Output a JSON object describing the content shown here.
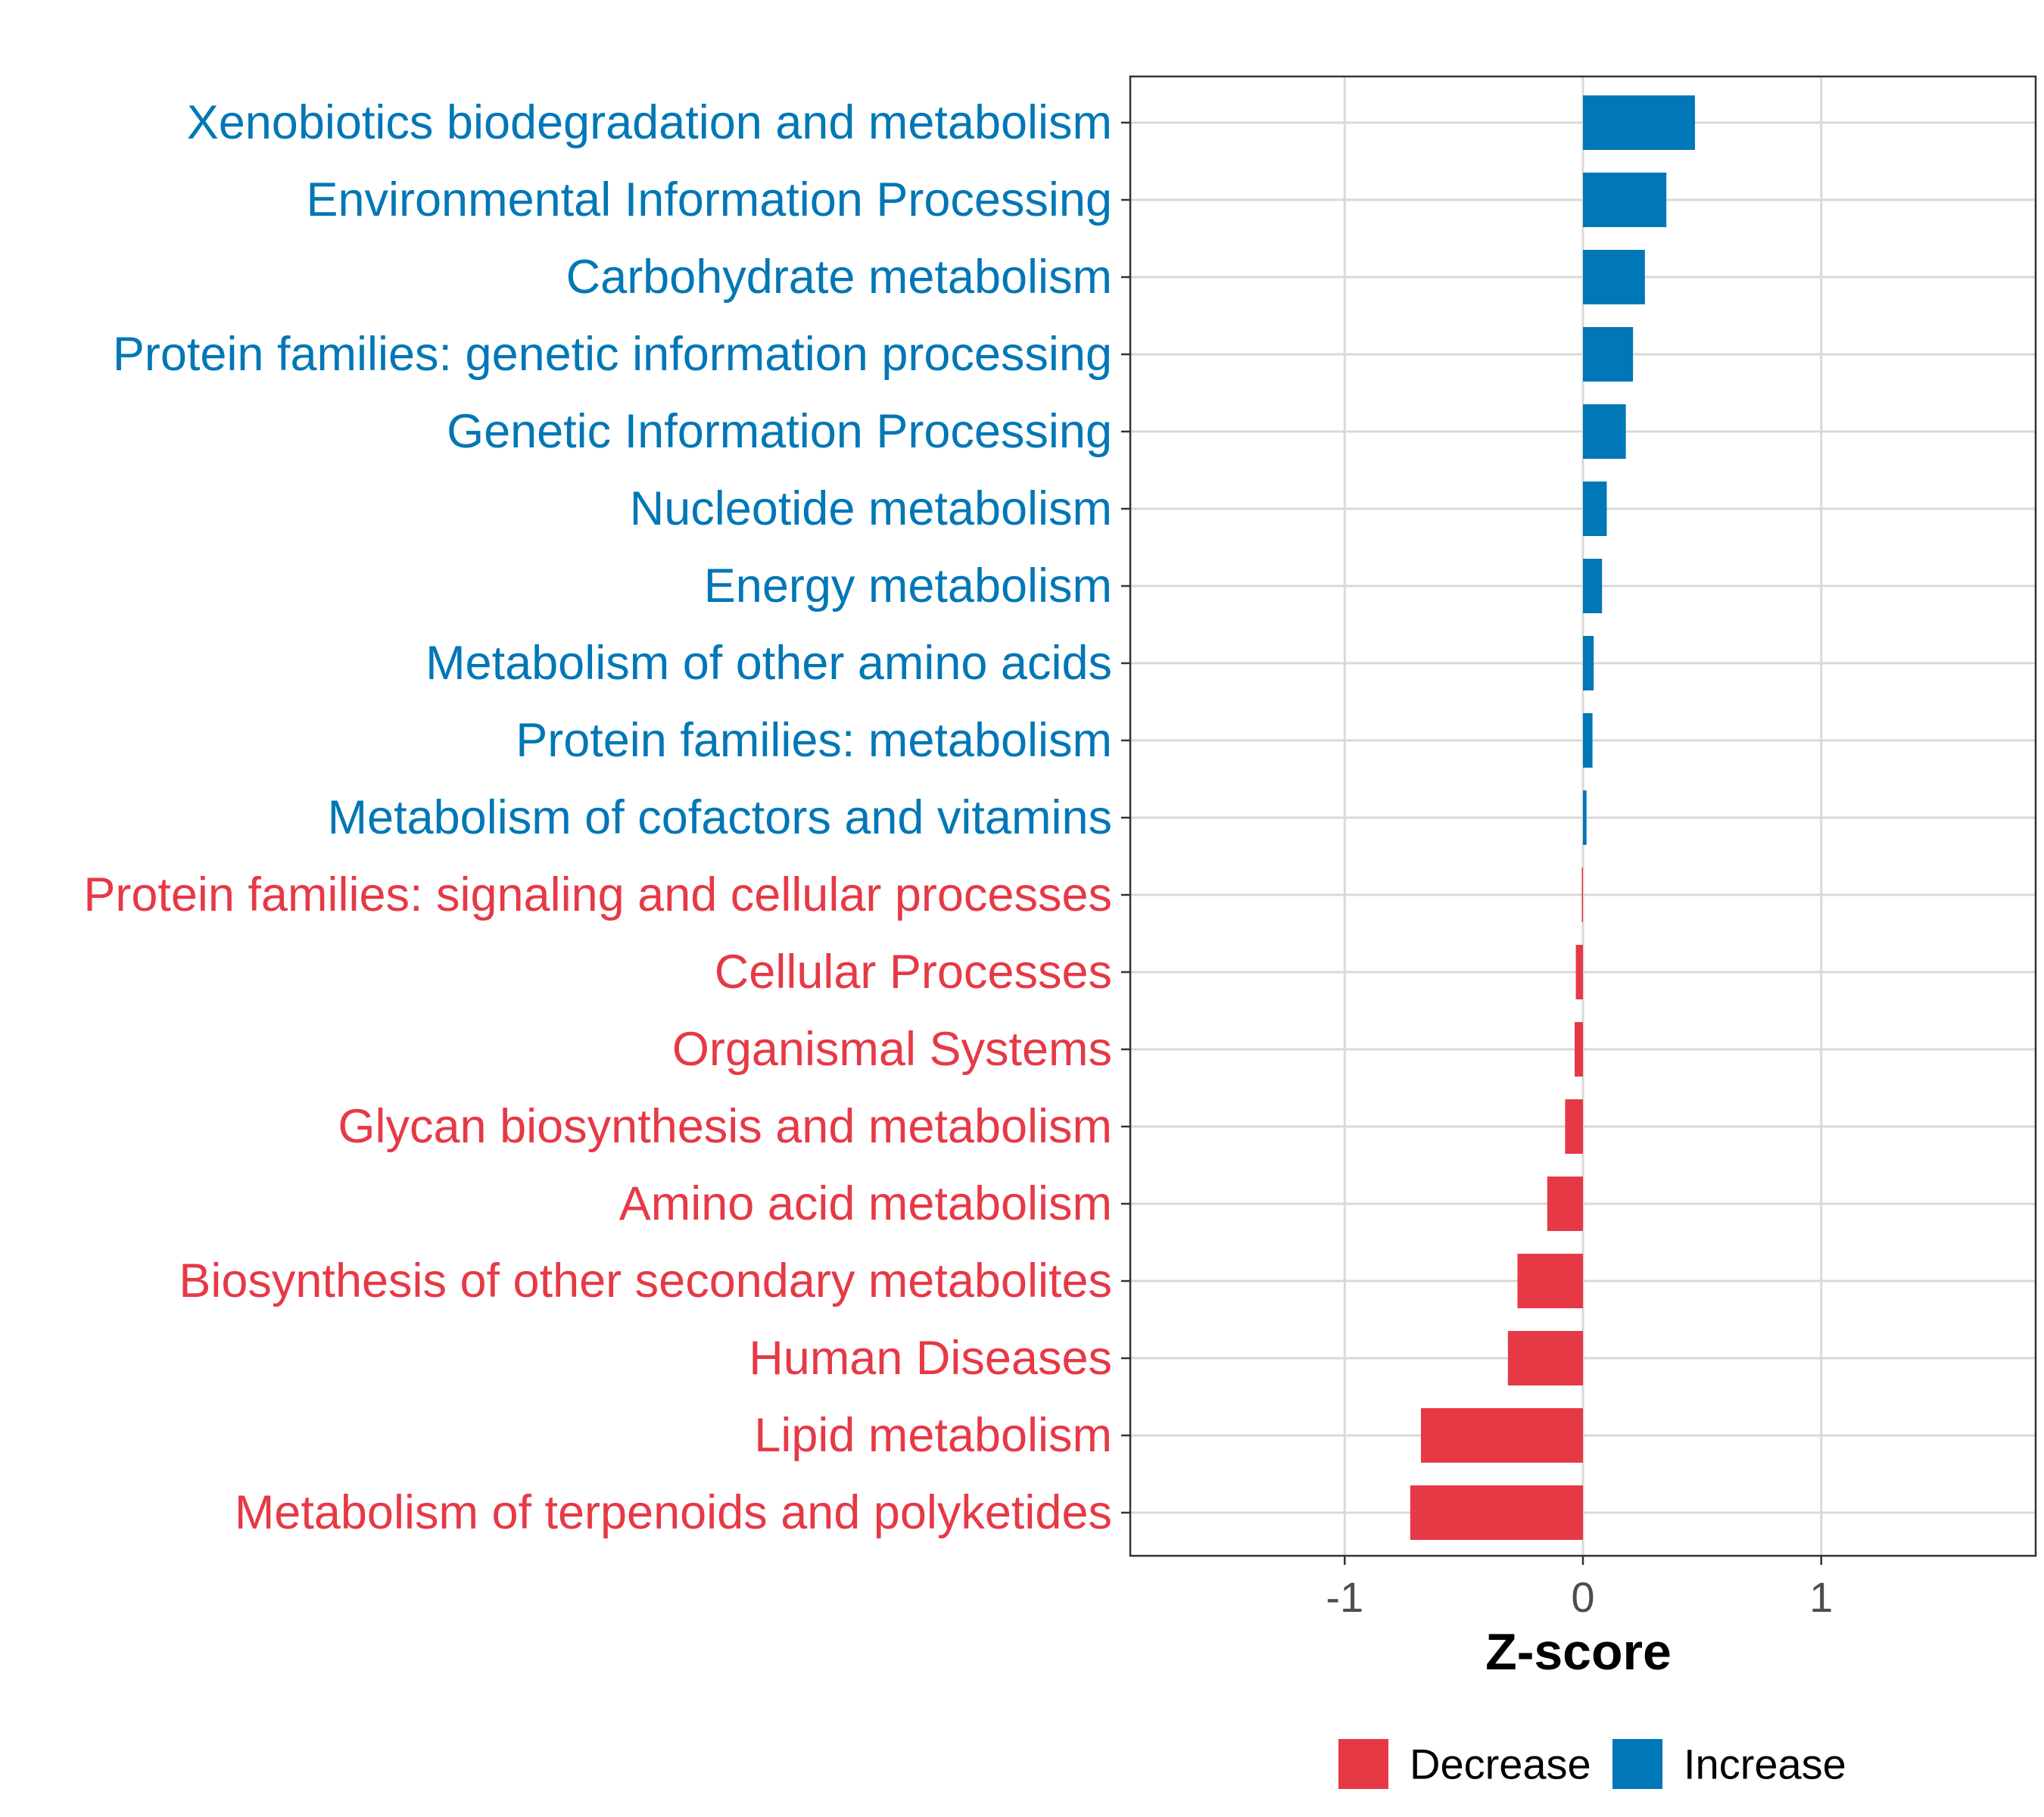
{
  "chart_data": {
    "type": "bar",
    "orientation": "horizontal",
    "title": "",
    "xlabel": "Z-score",
    "ylabel": "",
    "xlim": [
      -1.9,
      1.9
    ],
    "x_ticks": [
      -1,
      0,
      1
    ],
    "x_tick_labels": [
      "-1",
      "0",
      "1"
    ],
    "grid": true,
    "legend_position": "bottom",
    "categories": [
      "Xenobiotics biodegradation and metabolism",
      "Environmental Information Processing",
      "Carbohydrate metabolism",
      "Protein families: genetic information processing",
      "Genetic Information Processing",
      "Nucleotide metabolism",
      "Energy metabolism",
      "Metabolism of other amino acids",
      "Protein families: metabolism",
      "Metabolism of cofactors and vitamins",
      "Protein families: signaling and cellular processes",
      "Cellular Processes",
      "Organismal Systems",
      "Glycan biosynthesis and metabolism",
      "Amino acid metabolism",
      "Biosynthesis of other secondary metabolites",
      "Human Diseases",
      "Lipid metabolism",
      "Metabolism of terpenoids and polyketides"
    ],
    "values": [
      0.47,
      0.35,
      0.26,
      0.21,
      0.18,
      0.1,
      0.08,
      0.045,
      0.04,
      0.015,
      -0.005,
      -0.03,
      -0.035,
      -0.075,
      -0.15,
      -0.275,
      -0.315,
      -0.68,
      -0.725
    ],
    "groups": [
      "Increase",
      "Increase",
      "Increase",
      "Increase",
      "Increase",
      "Increase",
      "Increase",
      "Increase",
      "Increase",
      "Increase",
      "Decrease",
      "Decrease",
      "Decrease",
      "Decrease",
      "Decrease",
      "Decrease",
      "Decrease",
      "Decrease",
      "Decrease"
    ],
    "legend": [
      {
        "name": "Decrease",
        "color": "#e63946"
      },
      {
        "name": "Increase",
        "color": "#0077b6"
      }
    ],
    "colors": {
      "Increase": "#0077b6",
      "Decrease": "#e63946"
    }
  }
}
